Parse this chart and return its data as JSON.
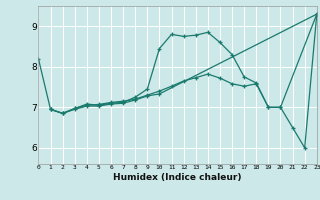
{
  "xlabel": "Humidex (Indice chaleur)",
  "bg_color": "#cce8e8",
  "line_color": "#1a7a6e",
  "grid_color": "#ffffff",
  "x_ticks": [
    0,
    1,
    2,
    3,
    4,
    5,
    6,
    7,
    8,
    9,
    10,
    11,
    12,
    13,
    14,
    15,
    16,
    17,
    18,
    19,
    20,
    21,
    22,
    23
  ],
  "y_ticks": [
    6,
    7,
    8,
    9
  ],
  "xlim": [
    0,
    23
  ],
  "ylim": [
    5.6,
    9.5
  ],
  "line1_x": [
    0,
    1,
    2,
    3,
    4,
    5,
    6,
    7,
    8,
    9,
    10,
    11,
    12,
    13,
    14,
    15,
    16,
    17,
    18,
    19,
    20,
    21,
    22,
    23
  ],
  "line1_y": [
    8.2,
    6.95,
    6.85,
    6.97,
    7.08,
    7.05,
    7.1,
    7.12,
    7.25,
    7.45,
    8.45,
    8.8,
    8.75,
    8.78,
    8.85,
    8.6,
    8.3,
    7.75,
    7.6,
    7.0,
    7.0,
    6.5,
    6.0,
    9.3
  ],
  "line2_x": [
    1,
    2,
    3,
    4,
    5,
    6,
    7,
    8,
    9,
    10,
    11,
    12,
    13,
    14,
    15,
    16,
    17,
    18,
    19,
    20,
    23
  ],
  "line2_y": [
    6.95,
    6.85,
    6.97,
    7.05,
    7.07,
    7.12,
    7.15,
    7.2,
    7.3,
    7.4,
    7.52,
    7.65,
    7.73,
    7.82,
    7.72,
    7.58,
    7.52,
    7.58,
    7.0,
    7.0,
    9.3
  ],
  "line3_x": [
    1,
    2,
    3,
    4,
    5,
    6,
    7,
    8,
    9,
    10,
    23
  ],
  "line3_y": [
    6.95,
    6.85,
    6.95,
    7.03,
    7.03,
    7.08,
    7.1,
    7.18,
    7.28,
    7.33,
    9.3
  ]
}
